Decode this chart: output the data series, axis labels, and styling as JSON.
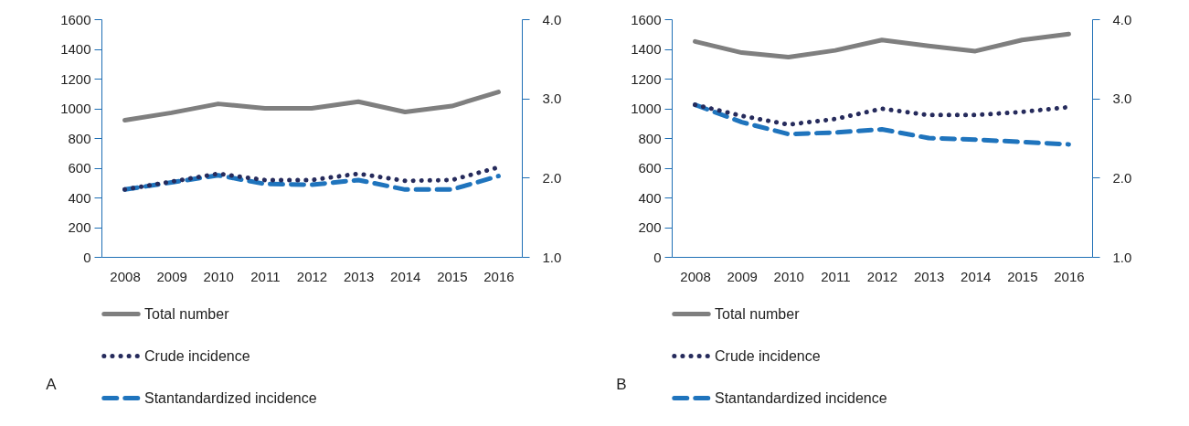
{
  "chart_data": [
    {
      "type": "line",
      "categories": [
        "2008",
        "2009",
        "2010",
        "2011",
        "2012",
        "2013",
        "2014",
        "2015",
        "2016"
      ],
      "series": [
        {
          "name": "Total number",
          "color": "#7f7f7f",
          "line_style": "solid",
          "values": [
            920,
            970,
            1030,
            1000,
            1000,
            1045,
            975,
            1015,
            1110
          ]
        },
        {
          "name": "Crude incidence",
          "color": "#262b5c",
          "line_style": "dotted",
          "axis": "y2",
          "values": [
            1.85,
            1.95,
            2.05,
            1.97,
            1.97,
            2.05,
            1.96,
            1.97,
            2.13
          ]
        },
        {
          "name": "Stantandardized incidence",
          "color": "#1f74bd",
          "line_style": "dashed",
          "axis": "y2",
          "values": [
            1.85,
            1.94,
            2.03,
            1.92,
            1.91,
            1.97,
            1.85,
            1.85,
            2.02
          ]
        }
      ],
      "ylim": [
        0,
        1600
      ],
      "yticks": [
        0,
        200,
        400,
        600,
        800,
        1000,
        1200,
        1400,
        1600
      ],
      "y2lim": [
        1,
        4
      ],
      "y2ticks": [
        {
          "value": 1,
          "label": "1.0"
        },
        {
          "value": 2,
          "label": "2.0"
        },
        {
          "value": 3,
          "label": "3.0"
        },
        {
          "value": 4,
          "label": "4.0"
        }
      ],
      "legend": "bottom",
      "annotations": [
        "A"
      ]
    },
    {
      "type": "line",
      "categories": [
        "2008",
        "2009",
        "2010",
        "2011",
        "2012",
        "2013",
        "2014",
        "2015",
        "2016"
      ],
      "series": [
        {
          "name": "Total number",
          "color": "#7f7f7f",
          "line_style": "solid",
          "values": [
            1450,
            1375,
            1345,
            1390,
            1460,
            1420,
            1385,
            1460,
            1500
          ]
        },
        {
          "name": "Crude incidence",
          "color": "#262b5c",
          "line_style": "dotted",
          "axis": "y2",
          "values": [
            2.92,
            2.78,
            2.67,
            2.74,
            2.87,
            2.79,
            2.79,
            2.83,
            2.89
          ]
        },
        {
          "name": "Stantandardized incidence",
          "color": "#1f74bd",
          "line_style": "dashed",
          "axis": "y2",
          "values": [
            2.92,
            2.7,
            2.55,
            2.57,
            2.61,
            2.5,
            2.48,
            2.45,
            2.42
          ]
        }
      ],
      "ylim": [
        0,
        1600
      ],
      "yticks": [
        0,
        200,
        400,
        600,
        800,
        1000,
        1200,
        1400,
        1600
      ],
      "y2lim": [
        1,
        4
      ],
      "y2ticks": [
        {
          "value": 1,
          "label": "1.0"
        },
        {
          "value": 2,
          "label": "2.0"
        },
        {
          "value": 3,
          "label": "3.0"
        },
        {
          "value": 4,
          "label": "4.0"
        }
      ],
      "legend": "bottom",
      "annotations": [
        "B"
      ]
    }
  ]
}
